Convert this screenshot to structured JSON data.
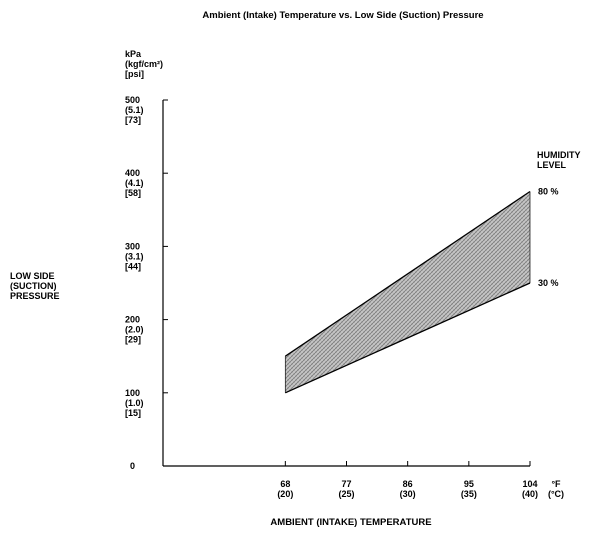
{
  "chart_data": {
    "type": "area",
    "title": "Ambient (Intake) Temperature vs. Low Side (Suction) Pressure",
    "xlabel": "AMBIENT (INTAKE) TEMPERATURE",
    "ylabel": [
      "LOW SIDE",
      "(SUCTION)",
      "PRESSURE"
    ],
    "y_unit_label": [
      "kPa",
      "(kgf/cm²)",
      "[psi]"
    ],
    "x_unit_label": [
      "°F",
      "(°C)"
    ],
    "band_label": [
      "HUMIDITY",
      "LEVEL"
    ],
    "xlim": [
      50,
      104
    ],
    "ylim": [
      0,
      500
    ],
    "x_ticks": [
      {
        "value": 68,
        "label": "68",
        "sub": "(20)"
      },
      {
        "value": 77,
        "label": "77",
        "sub": "(25)"
      },
      {
        "value": 86,
        "label": "86",
        "sub": "(30)"
      },
      {
        "value": 95,
        "label": "95",
        "sub": "(35)"
      },
      {
        "value": 104,
        "label": "104",
        "sub": "(40)"
      }
    ],
    "y_ticks": [
      {
        "value": 0,
        "lines": [
          "0"
        ]
      },
      {
        "value": 100,
        "lines": [
          "100",
          "(1.0)",
          "[15]"
        ]
      },
      {
        "value": 200,
        "lines": [
          "200",
          "(2.0)",
          "[29]"
        ]
      },
      {
        "value": 300,
        "lines": [
          "300",
          "(3.1)",
          "[44]"
        ]
      },
      {
        "value": 400,
        "lines": [
          "400",
          "(4.1)",
          "[58]"
        ]
      },
      {
        "value": 500,
        "lines": [
          "500",
          "(5.1)",
          "[73]"
        ]
      }
    ],
    "series": [
      {
        "name": "80 %",
        "x": [
          68,
          104
        ],
        "y": [
          150,
          375
        ]
      },
      {
        "name": "30 %",
        "x": [
          68,
          104
        ],
        "y": [
          100,
          250
        ]
      }
    ],
    "grid": false,
    "band_fill": "#b3b3b3"
  }
}
